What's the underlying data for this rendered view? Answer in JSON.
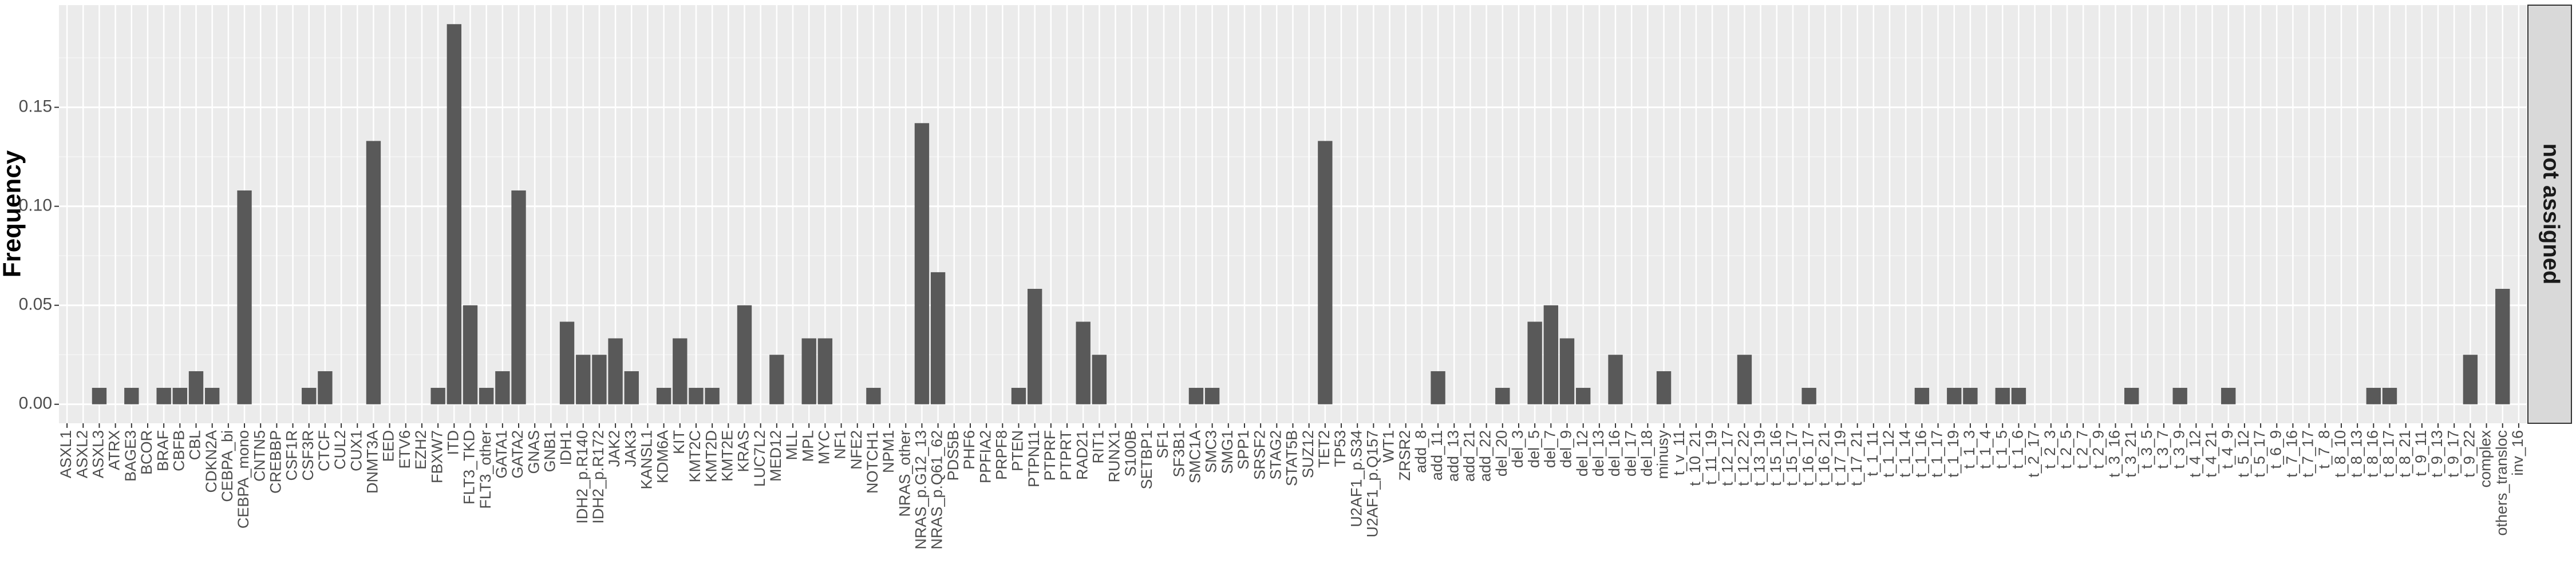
{
  "chart_data": {
    "type": "bar",
    "ylabel": "Frequency",
    "strip_label": "not assigned",
    "color": "#595959",
    "grid": true,
    "categories": [
      "ASXL1",
      "ASXL2",
      "ASXL3",
      "ATRX",
      "BAGE3",
      "BCOR",
      "BRAF",
      "CBFB",
      "CBL",
      "CDKN2A",
      "CEBPA_bi",
      "CEBPA_mono",
      "CNTN5",
      "CREBBP",
      "CSF1R",
      "CSF3R",
      "CTCF",
      "CUL2",
      "CUX1",
      "DNMT3A",
      "EED",
      "ETV6",
      "EZH2",
      "FBXW7",
      "ITD",
      "FLT3_TKD",
      "FLT3_other",
      "GATA1",
      "GATA2",
      "GNAS",
      "GNB1",
      "IDH1",
      "IDH2_p.R140",
      "IDH2_p.R172",
      "JAK2",
      "JAK3",
      "KANSL1",
      "KDM6A",
      "KIT",
      "KMT2C",
      "KMT2D",
      "KMT2E",
      "KRAS",
      "LUC7L2",
      "MED12",
      "MLL",
      "MPL",
      "MYC",
      "NF1",
      "NFE2",
      "NOTCH1",
      "NPM1",
      "NRAS_other",
      "NRAS_p.G12_13",
      "NRAS_p.Q61_62",
      "PDS5B",
      "PHF6",
      "PPFIA2",
      "PRPF8",
      "PTEN",
      "PTPN11",
      "PTPRF",
      "PTPRT",
      "RAD21",
      "RIT1",
      "RUNX1",
      "S100B",
      "SETBP1",
      "SF1",
      "SF3B1",
      "SMC1A",
      "SMC3",
      "SMG1",
      "SPP1",
      "SRSF2",
      "STAG2",
      "STAT5B",
      "SUZ12",
      "TET2",
      "TP53",
      "U2AF1_p.S34",
      "U2AF1_p.Q157",
      "WT1",
      "ZRSR2",
      "add_8",
      "add_11",
      "add_13",
      "add_21",
      "add_22",
      "del_20",
      "del_3",
      "del_5",
      "del_7",
      "del_9",
      "del_12",
      "del_13",
      "del_16",
      "del_17",
      "del_18",
      "minusy",
      "t_v_11",
      "t_10_21",
      "t_11_19",
      "t_12_17",
      "t_12_22",
      "t_13_19",
      "t_15_16",
      "t_15_17",
      "t_16_17",
      "t_16_21",
      "t_17_19",
      "t_17_21",
      "t_1_11",
      "t_1_12",
      "t_1_14",
      "t_1_16",
      "t_1_17",
      "t_1_19",
      "t_1_3",
      "t_1_4",
      "t_1_5",
      "t_1_6",
      "t_2_17",
      "t_2_3",
      "t_2_5",
      "t_2_7",
      "t_2_9",
      "t_3_16",
      "t_3_21",
      "t_3_5",
      "t_3_7",
      "t_3_9",
      "t_4_12",
      "t_4_21",
      "t_4_9",
      "t_5_12",
      "t_5_17",
      "t_6_9",
      "t_7_16",
      "t_7_17",
      "t_7_8",
      "t_8_10",
      "t_8_13",
      "t_8_16",
      "t_8_17",
      "t_8_21",
      "t_9_11",
      "t_9_13",
      "t_9_17",
      "t_9_22",
      "complex",
      "others_transloc",
      "inv_16"
    ],
    "values": [
      0,
      0,
      0.0083,
      0,
      0.0083,
      0,
      0.0083,
      0.0083,
      0.0167,
      0.0083,
      0,
      0.108,
      0,
      0,
      0,
      0.0083,
      0.0167,
      0,
      0,
      0.133,
      0,
      0,
      0,
      0.0083,
      0.192,
      0.05,
      0.0083,
      0.0167,
      0.108,
      0,
      0,
      0.0417,
      0.025,
      0.025,
      0.0333,
      0.0167,
      0,
      0.0083,
      0.0333,
      0.0083,
      0.0083,
      0,
      0.05,
      0,
      0.025,
      0,
      0.0333,
      0.0333,
      0,
      0,
      0.0083,
      0,
      0,
      0.142,
      0.0667,
      0,
      0,
      0,
      0,
      0.0083,
      0.0583,
      0,
      0,
      0.0417,
      0.025,
      0,
      0,
      0,
      0,
      0,
      0.0083,
      0.0083,
      0,
      0,
      0,
      0,
      0,
      0,
      0.133,
      0,
      0,
      0,
      0,
      0,
      0,
      0.0167,
      0,
      0,
      0,
      0.0083,
      0,
      0.0417,
      0.05,
      0.0333,
      0.0083,
      0,
      0.025,
      0,
      0,
      0.0167,
      0,
      0,
      0,
      0,
      0.025,
      0,
      0,
      0,
      0.0083,
      0,
      0,
      0,
      0,
      0,
      0,
      0.0083,
      0,
      0.0083,
      0.0083,
      0,
      0.0083,
      0.0083,
      0,
      0,
      0,
      0,
      0,
      0,
      0.0083,
      0,
      0,
      0.0083,
      0,
      0,
      0.0083,
      0,
      0,
      0,
      0,
      0,
      0,
      0,
      0,
      0.0083,
      0.0083,
      0,
      0,
      0,
      0,
      0.025,
      0,
      0.0583,
      0
    ],
    "ylim": [
      -0.0096,
      0.2016
    ],
    "yticks": [
      {
        "value": 0,
        "label": "0.00"
      },
      {
        "value": 0.05,
        "label": "0.05"
      },
      {
        "value": 0.1,
        "label": "0.10"
      },
      {
        "value": 0.15,
        "label": "0.15"
      }
    ],
    "yminor": [
      0.025,
      0.075,
      0.125,
      0.175
    ]
  }
}
